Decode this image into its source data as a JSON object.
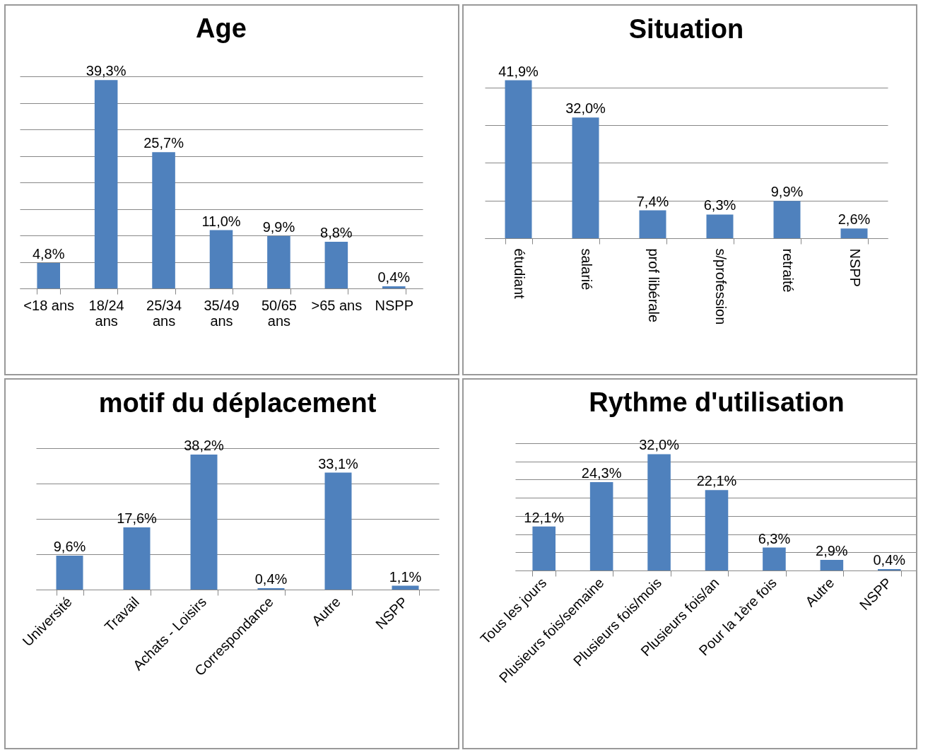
{
  "chart_data": [
    {
      "type": "bar",
      "title": "Age",
      "categories": [
        "<18 ans",
        "18/24 ans",
        "25/34 ans",
        "35/49 ans",
        "50/65 ans",
        ">65 ans",
        "NSPP"
      ],
      "values": [
        4.8,
        39.3,
        25.7,
        11.0,
        9.9,
        8.8,
        0.4
      ],
      "value_labels": [
        "4,8%",
        "39,3%",
        "25,7%",
        "11,0%",
        "9,9%",
        "8,8%",
        "0,4%"
      ],
      "color": "#4f81bd",
      "grid": "y",
      "tick_labels": "x"
    },
    {
      "type": "bar",
      "title": "Situation",
      "categories": [
        "étudiant",
        "salarié",
        "prof libérale",
        "s/profession",
        "retraité",
        "NSPP"
      ],
      "values": [
        41.9,
        32.0,
        7.4,
        6.3,
        9.9,
        2.6
      ],
      "value_labels": [
        "41,9%",
        "32,0%",
        "7,4%",
        "6,3%",
        "9,9%",
        "2,6%"
      ],
      "color": "#4f81bd",
      "grid": "y",
      "tick_labels": "x"
    },
    {
      "type": "bar",
      "title": "motif du déplacement",
      "categories": [
        "Université",
        "Travail",
        "Achats - Loisirs",
        "Correspondance",
        "Autre",
        "NSPP"
      ],
      "values": [
        9.6,
        17.6,
        38.2,
        0.4,
        33.1,
        1.1
      ],
      "value_labels": [
        "9,6%",
        "17,6%",
        "38,2%",
        "0,4%",
        "33,1%",
        "1,1%"
      ],
      "color": "#4f81bd",
      "grid": "y",
      "tick_labels": "x"
    },
    {
      "type": "bar",
      "title": "Rythme d'utilisation",
      "categories": [
        "Tous les jours",
        "Plusieurs fois/semaine",
        "Plusieurs fois/mois",
        "Plusieurs fois/an",
        "Pour la 1ère fois",
        "Autre",
        "NSPP"
      ],
      "values": [
        12.1,
        24.3,
        32.0,
        22.1,
        6.3,
        2.9,
        0.4
      ],
      "value_labels": [
        "12,1%",
        "24,3%",
        "32,0%",
        "22,1%",
        "6,3%",
        "2,9%",
        "0,4%"
      ],
      "color": "#4f81bd",
      "grid": "y",
      "tick_labels": "x"
    }
  ]
}
